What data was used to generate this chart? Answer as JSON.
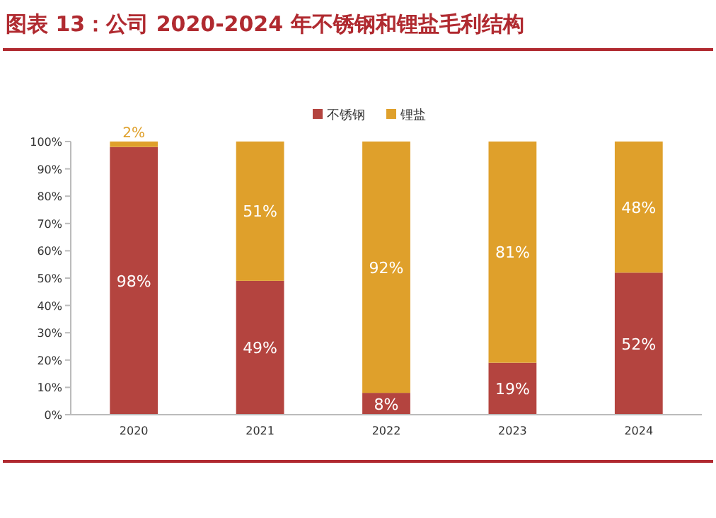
{
  "chart_data": {
    "type": "bar",
    "title": "图表 13：公司 2020-2024 年不锈钢和锂盐毛利结构",
    "categories": [
      "2020",
      "2021",
      "2022",
      "2023",
      "2024"
    ],
    "stacked": true,
    "series": [
      {
        "name": "不锈钢",
        "color": "#b4443f",
        "values": [
          98,
          49,
          8,
          19,
          52
        ],
        "value_labels": [
          "98%",
          "49%",
          "8%",
          "19%",
          "52%"
        ]
      },
      {
        "name": "锂盐",
        "color": "#dfa02b",
        "values": [
          2,
          51,
          92,
          81,
          48
        ],
        "value_labels": [
          "2%",
          "51%",
          "92%",
          "81%",
          "48%"
        ]
      }
    ],
    "ylim": [
      0,
      100
    ],
    "yticks": [
      {
        "value": 0,
        "label": "0%"
      },
      {
        "value": 10,
        "label": "10%"
      },
      {
        "value": 20,
        "label": "20%"
      },
      {
        "value": 30,
        "label": "30%"
      },
      {
        "value": 40,
        "label": "40%"
      },
      {
        "value": 50,
        "label": "50%"
      },
      {
        "value": 60,
        "label": "60%"
      },
      {
        "value": 70,
        "label": "70%"
      },
      {
        "value": 80,
        "label": "80%"
      },
      {
        "value": 90,
        "label": "90%"
      },
      {
        "value": 100,
        "label": "100%"
      }
    ],
    "grid": false,
    "legend": "top"
  }
}
